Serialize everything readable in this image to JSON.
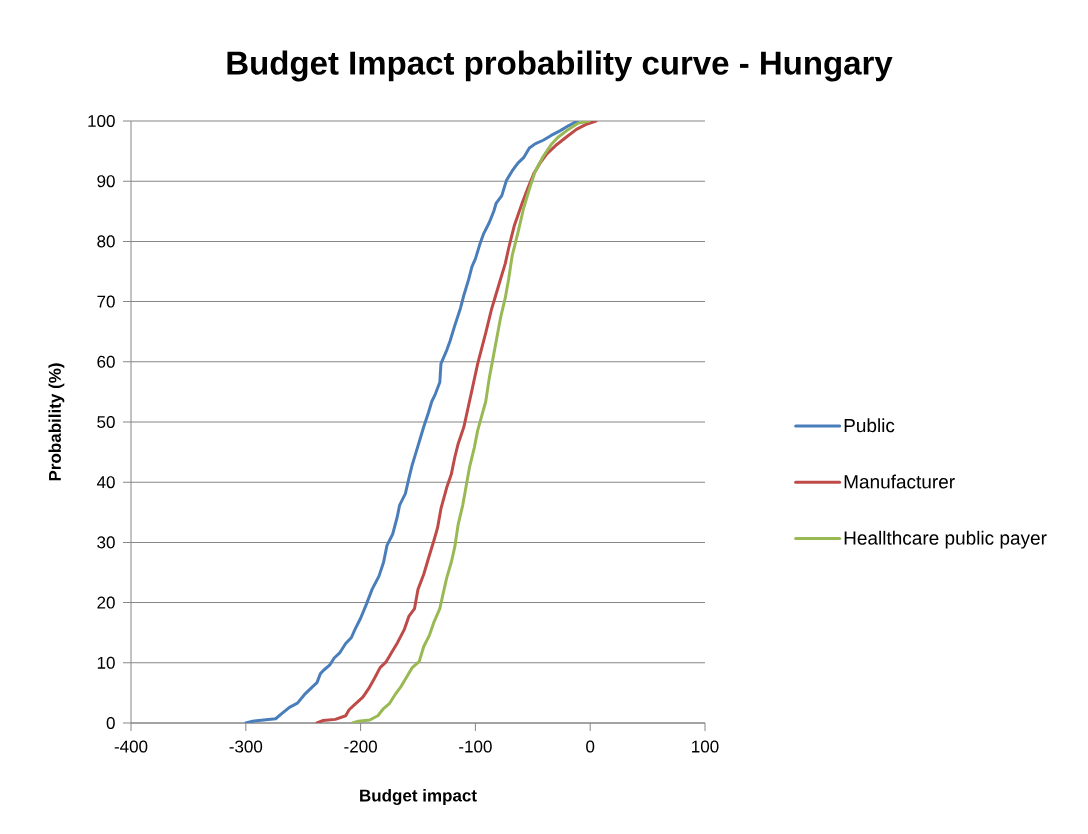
{
  "chart_data": {
    "type": "line",
    "title": "Budget Impact probability curve - Hungary",
    "xlabel": "Budget impact",
    "ylabel": "Probability (%)",
    "series": [
      {
        "name": "Public",
        "color": "#4a7ebb",
        "x": [
          -300,
          -294,
          -274,
          -269,
          -262,
          -255,
          -249,
          -242,
          -238,
          -235,
          -232,
          -227,
          -223,
          -218,
          -213,
          -208,
          -205,
          -200,
          -195,
          -190,
          -184,
          -180,
          -177,
          -172,
          -168,
          -166,
          -161,
          -158,
          -155,
          -151,
          -148,
          -145,
          -141,
          -138,
          -135,
          -131,
          -130,
          -125,
          -122,
          -118,
          -113,
          -110,
          -106,
          -103,
          -100,
          -96,
          -93,
          -88,
          -84,
          -82,
          -77,
          -74,
          -73,
          -68,
          -63,
          -58,
          -53,
          -48,
          -41,
          -34,
          -26,
          -19,
          -14,
          -11
        ],
        "values": [
          0,
          0.3,
          0.7,
          1.5,
          2.6,
          3.3,
          4.7,
          6.0,
          6.7,
          8.2,
          8.8,
          9.6,
          10.8,
          11.7,
          13.2,
          14.2,
          15.5,
          17.4,
          19.7,
          22.2,
          24.4,
          26.7,
          29.5,
          31.4,
          34.3,
          36.2,
          38.1,
          40.6,
          42.9,
          45.4,
          47.3,
          49.2,
          51.5,
          53.4,
          54.6,
          56.6,
          59.7,
          61.9,
          63.5,
          66.0,
          68.9,
          71.1,
          73.6,
          75.8,
          77.1,
          79.6,
          81.2,
          83.1,
          85.0,
          86.3,
          87.6,
          89.5,
          90.1,
          91.7,
          93.0,
          93.9,
          95.5,
          96.2,
          96.8,
          97.6,
          98.4,
          99.2,
          99.7,
          100
        ]
      },
      {
        "name": "Manufacturer",
        "color": "#be4b48",
        "x": [
          -238,
          -233,
          -222,
          -213,
          -210,
          -205,
          -198,
          -193,
          -188,
          -183,
          -178,
          -173,
          -168,
          -162,
          -158,
          -153,
          -150,
          -145,
          -140,
          -136,
          -133,
          -130,
          -125,
          -121,
          -118,
          -115,
          -110,
          -106,
          -103,
          -98,
          -91,
          -86,
          -83,
          -78,
          -74,
          -71,
          -66,
          -59,
          -54,
          -49,
          -44,
          -38,
          -29,
          -21,
          -12,
          -4,
          5
        ],
        "values": [
          0,
          0.4,
          0.6,
          1.2,
          2.2,
          3.1,
          4.3,
          5.7,
          7.4,
          9.2,
          10.1,
          11.7,
          13.3,
          15.5,
          17.7,
          19.0,
          22.2,
          24.7,
          27.9,
          30.4,
          32.4,
          35.6,
          39.1,
          41.3,
          44.1,
          46.4,
          49.2,
          52.7,
          55.3,
          59.7,
          64.8,
          68.7,
          70.6,
          73.8,
          76.3,
          78.9,
          82.7,
          86.5,
          89.0,
          91.3,
          92.9,
          94.5,
          96.1,
          97.3,
          98.6,
          99.4,
          100
        ]
      },
      {
        "name": "Heallthcare public payer",
        "color": "#98b954",
        "x": [
          -207,
          -202,
          -192,
          -185,
          -180,
          -175,
          -170,
          -165,
          -160,
          -155,
          -149,
          -145,
          -140,
          -136,
          -131,
          -128,
          -125,
          -121,
          -118,
          -115,
          -111,
          -108,
          -105,
          -101,
          -98,
          -91,
          -88,
          -83,
          -78,
          -74,
          -71,
          -68,
          -63,
          -58,
          -53,
          -48,
          -41,
          -34,
          -28,
          -19,
          -11,
          -1
        ],
        "values": [
          0,
          0.3,
          0.5,
          1.2,
          2.4,
          3.2,
          4.7,
          6.0,
          7.6,
          9.2,
          10.2,
          12.7,
          14.6,
          16.8,
          19.0,
          21.6,
          24.1,
          26.7,
          29.2,
          33.0,
          36.2,
          39.4,
          42.6,
          45.7,
          48.6,
          53.4,
          57.2,
          62.3,
          67.4,
          70.6,
          73.8,
          77.6,
          81.4,
          85.5,
          88.7,
          91.6,
          94.1,
          96.1,
          97.3,
          98.6,
          99.6,
          100
        ]
      }
    ],
    "xlim": [
      -400,
      100
    ],
    "ylim": [
      0,
      100
    ],
    "xticks": [
      -400,
      -300,
      -200,
      -100,
      0,
      100
    ],
    "yticks": [
      0,
      10,
      20,
      30,
      40,
      50,
      60,
      70,
      80,
      90,
      100
    ],
    "grid": "y",
    "legend": "right",
    "marker": "none",
    "line_style": "solid"
  }
}
